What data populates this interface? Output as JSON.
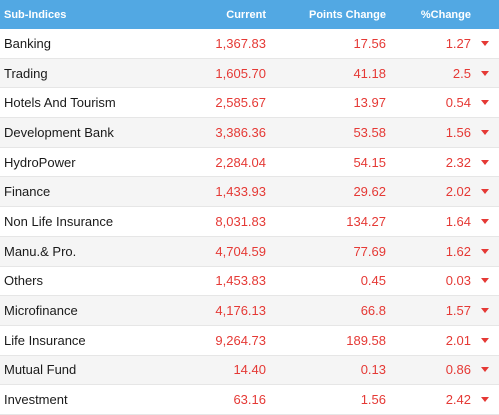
{
  "header": {
    "name": "Sub-Indices",
    "current": "Current",
    "points_change": "Points Change",
    "pct_change": "%Change"
  },
  "colors": {
    "header_bg": "#52a8e3",
    "negative": "#e53935"
  },
  "rows": [
    {
      "name": "Banking",
      "current": "1,367.83",
      "points": "17.56",
      "pct": "1.27",
      "trend": "down-arrow-icon"
    },
    {
      "name": "Trading",
      "current": "1,605.70",
      "points": "41.18",
      "pct": "2.5",
      "trend": "down-arrow-icon"
    },
    {
      "name": "Hotels And Tourism",
      "current": "2,585.67",
      "points": "13.97",
      "pct": "0.54",
      "trend": "down-arrow-icon"
    },
    {
      "name": "Development Bank",
      "current": "3,386.36",
      "points": "53.58",
      "pct": "1.56",
      "trend": "down-arrow-icon"
    },
    {
      "name": "HydroPower",
      "current": "2,284.04",
      "points": "54.15",
      "pct": "2.32",
      "trend": "down-arrow-icon"
    },
    {
      "name": "Finance",
      "current": "1,433.93",
      "points": "29.62",
      "pct": "2.02",
      "trend": "down-arrow-icon"
    },
    {
      "name": "Non Life Insurance",
      "current": "8,031.83",
      "points": "134.27",
      "pct": "1.64",
      "trend": "down-arrow-icon"
    },
    {
      "name": "Manu.& Pro.",
      "current": "4,704.59",
      "points": "77.69",
      "pct": "1.62",
      "trend": "down-arrow-icon"
    },
    {
      "name": "Others",
      "current": "1,453.83",
      "points": "0.45",
      "pct": "0.03",
      "trend": "down-arrow-icon"
    },
    {
      "name": "Microfinance",
      "current": "4,176.13",
      "points": "66.8",
      "pct": "1.57",
      "trend": "down-arrow-icon"
    },
    {
      "name": "Life Insurance",
      "current": "9,264.73",
      "points": "189.58",
      "pct": "2.01",
      "trend": "down-arrow-icon"
    },
    {
      "name": "Mutual Fund",
      "current": "14.40",
      "points": "0.13",
      "pct": "0.86",
      "trend": "down-arrow-icon"
    },
    {
      "name": "Investment",
      "current": "63.16",
      "points": "1.56",
      "pct": "2.42",
      "trend": "down-arrow-icon"
    }
  ]
}
